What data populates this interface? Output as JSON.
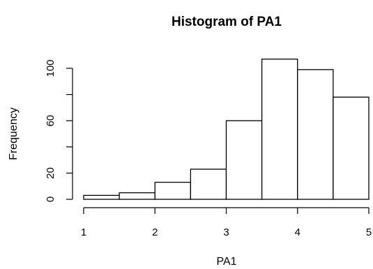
{
  "chart_data": {
    "type": "bar",
    "title": "Histogram of PA1",
    "xlabel": "PA1",
    "ylabel": "Frequency",
    "bins": [
      {
        "x0": 1.0,
        "x1": 1.5,
        "count": 3
      },
      {
        "x0": 1.5,
        "x1": 2.0,
        "count": 5
      },
      {
        "x0": 2.0,
        "x1": 2.5,
        "count": 13
      },
      {
        "x0": 2.5,
        "x1": 3.0,
        "count": 23
      },
      {
        "x0": 3.0,
        "x1": 3.5,
        "count": 60
      },
      {
        "x0": 3.5,
        "x1": 4.0,
        "count": 107
      },
      {
        "x0": 4.0,
        "x1": 4.5,
        "count": 99
      },
      {
        "x0": 4.5,
        "x1": 5.0,
        "count": 78
      }
    ],
    "xlim": [
      1,
      5
    ],
    "ylim": [
      0,
      107
    ],
    "xticks": [
      1,
      2,
      3,
      4,
      5
    ],
    "yticks": [
      0,
      20,
      40,
      60,
      80,
      100
    ],
    "ytick_labels": [
      "0",
      "20",
      "",
      "60",
      "",
      "100"
    ],
    "grid": false,
    "colors": {
      "bar_fill": "#ffffff",
      "bar_edge": "#000000"
    }
  }
}
